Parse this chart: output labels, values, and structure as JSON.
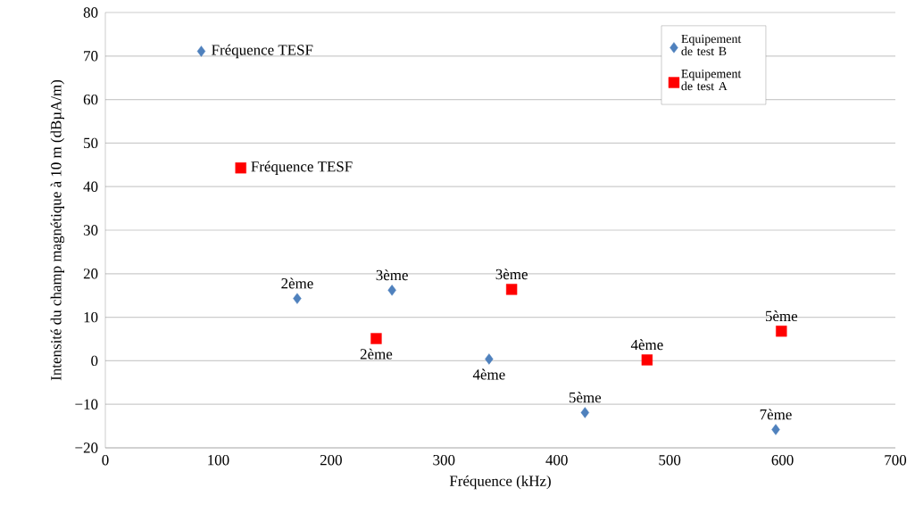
{
  "chart_data": {
    "type": "scatter",
    "xlabel": "Fréquence (kHz)",
    "ylabel": "Intensité du champ magnétique à 10 m (dBµA/m)",
    "xlim": [
      0,
      700
    ],
    "xticks": [
      0,
      100,
      200,
      300,
      400,
      500,
      600,
      700
    ],
    "ylim": [
      -20,
      80
    ],
    "yticks": [
      {
        "value": -20,
        "label": "−20"
      },
      {
        "value": -10,
        "label": "−10"
      },
      0,
      10,
      20,
      30,
      40,
      50,
      60,
      70,
      80
    ],
    "grid": "y",
    "legend": "top right",
    "series": [
      {
        "name": "Equipement de test B",
        "color": "#4f81bd",
        "marker": "diamond",
        "x": [
          85,
          170,
          254,
          340,
          425,
          594
        ],
        "values": [
          71.1,
          14.3,
          16.2,
          0.4,
          -11.9,
          -15.8
        ]
      },
      {
        "name": "Equipement de test A",
        "color": "#ff0000",
        "marker": "square",
        "x": [
          120,
          240,
          360,
          480,
          599
        ],
        "values": [
          44.3,
          5.1,
          16.4,
          0.2,
          6.8
        ]
      }
    ],
    "annotations": [
      {
        "text": "Fréquence TESF",
        "x": 85,
        "y": 71.1
      },
      {
        "text": "2ème",
        "x": 170,
        "y": 14.3
      },
      {
        "text": "3ème",
        "x": 254,
        "y": 16.2
      },
      {
        "text": "4ème",
        "x": 340,
        "y": 0.4
      },
      {
        "text": "5ème",
        "x": 425,
        "y": -11.9
      },
      {
        "text": "7ème",
        "x": 594,
        "y": -15.8
      },
      {
        "text": "Fréquence TESF",
        "x": 120,
        "y": 44.3
      },
      {
        "text": "2ème",
        "x": 240,
        "y": 5.1
      },
      {
        "text": "3ème",
        "x": 360,
        "y": 16.4
      },
      {
        "text": "4ème",
        "x": 480,
        "y": 0.2
      },
      {
        "text": "5ème",
        "x": 599,
        "y": 6.8
      }
    ]
  }
}
